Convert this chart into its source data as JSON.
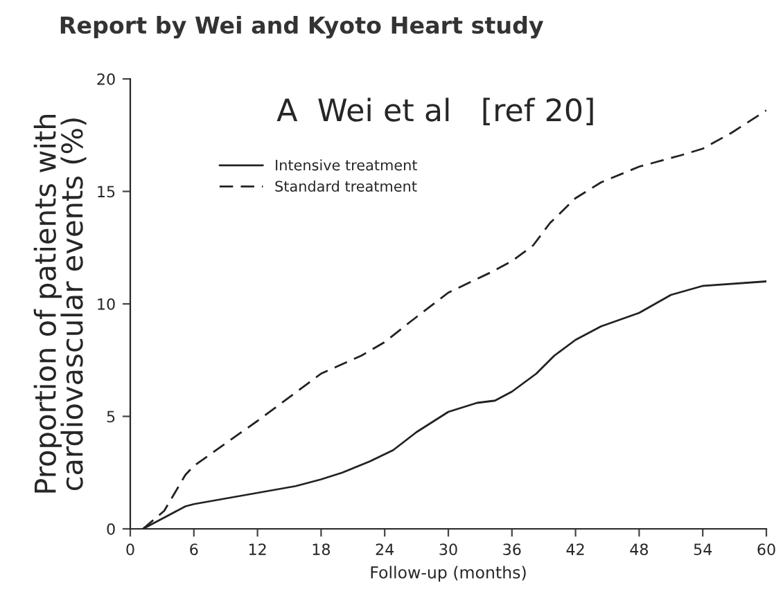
{
  "chart_data": {
    "type": "line",
    "title": "Report by Wei and Kyoto Heart study",
    "xlabel": "Follow-up (months)",
    "ylabel": "Proportion of patients with\ncardiovascular events (%)",
    "annotations": [
      "A  Wei et al   [ref 20]"
    ],
    "xlim": [
      0,
      60
    ],
    "xticks": [
      0,
      6,
      12,
      18,
      24,
      30,
      36,
      42,
      48,
      54,
      60
    ],
    "ylim": [
      0,
      20
    ],
    "yticks": [
      0,
      5,
      10,
      15,
      20
    ],
    "grid": false,
    "legend": "top left",
    "marker": "none",
    "series": [
      {
        "name": "Intensive treatment",
        "color": "#222222",
        "line_style": "solid",
        "x": [
          1.2,
          3.2,
          5.2,
          6,
          12,
          15.6,
          18,
          20,
          22.6,
          24.8,
          27,
          30,
          32.7,
          34.4,
          36,
          38.3,
          40,
          42,
          44.4,
          48,
          51,
          54,
          60
        ],
        "values": [
          0,
          0.5,
          1.0,
          1.1,
          1.6,
          1.9,
          2.2,
          2.5,
          3.0,
          3.5,
          4.3,
          5.2,
          5.6,
          5.7,
          6.1,
          6.9,
          7.7,
          8.4,
          9.0,
          9.6,
          10.4,
          10.8,
          11.0
        ]
      },
      {
        "name": "Standard treatment",
        "color": "#222222",
        "line_style": "dashed",
        "x": [
          1.2,
          3.2,
          5.2,
          6,
          12,
          18,
          21.8,
          24,
          26.4,
          30,
          34,
          36,
          38,
          39.6,
          42,
          44.4,
          48,
          51.9,
          54,
          56.7,
          60
        ],
        "values": [
          0,
          0.8,
          2.4,
          2.8,
          4.8,
          6.9,
          7.7,
          8.3,
          9.2,
          10.5,
          11.4,
          11.9,
          12.6,
          13.6,
          14.7,
          15.4,
          16.1,
          16.6,
          16.9,
          17.6,
          18.6
        ]
      }
    ]
  }
}
